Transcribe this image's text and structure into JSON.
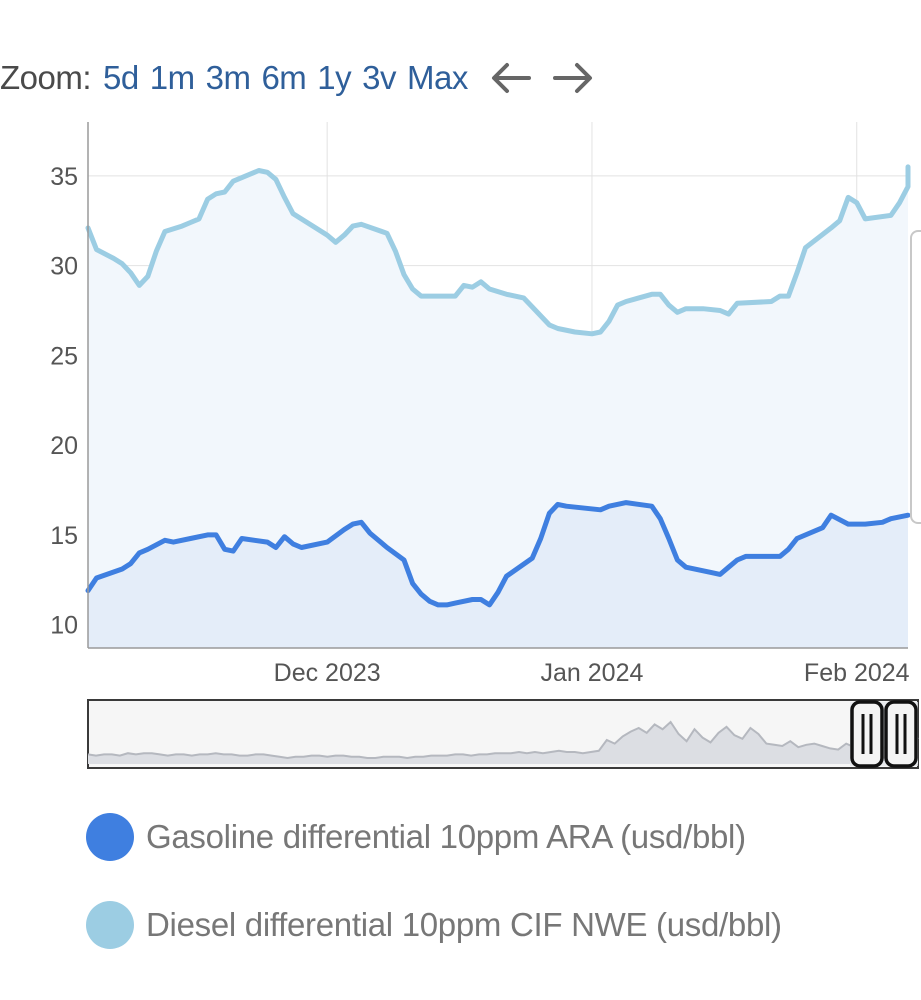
{
  "zoom": {
    "label": "Zoom:",
    "buttons": [
      "5d",
      "1m",
      "3m",
      "6m",
      "1y",
      "3v",
      "Max"
    ]
  },
  "colors": {
    "gasoline": "#3f7fe0",
    "diesel": "#9ccde3",
    "gasoline_fill": "#e4edf9",
    "diesel_fill": "#f2f7fc",
    "grid": "#e2e2e2",
    "navigator_line": "#b5b8bf"
  },
  "chart_data": {
    "type": "line",
    "x_axis": {
      "type": "date",
      "range": [
        "2023-11-03",
        "2024-02-07"
      ]
    },
    "y_axis": {
      "range": [
        8.7,
        38
      ],
      "ticks": [
        10,
        15,
        20,
        25,
        30,
        35
      ]
    },
    "x_ticks": [
      {
        "date": "2023-12-01",
        "label": "Dec 2023"
      },
      {
        "date": "2024-01-01",
        "label": "Jan 2024"
      },
      {
        "date": "2024-02-01",
        "label": "Feb 2024"
      }
    ],
    "grid": true,
    "series": [
      {
        "name": "Gasoline differential 10ppm ARA (usd/bbl)",
        "points": [
          [
            "2023-11-03",
            11.9
          ],
          [
            "2023-11-04",
            12.6
          ],
          [
            "2023-11-07",
            13.1
          ],
          [
            "2023-11-08",
            13.4
          ],
          [
            "2023-11-09",
            14.0
          ],
          [
            "2023-11-10",
            14.2
          ],
          [
            "2023-11-12",
            14.7
          ],
          [
            "2023-11-13",
            14.6
          ],
          [
            "2023-11-15",
            14.8
          ],
          [
            "2023-11-17",
            15.0
          ],
          [
            "2023-11-18",
            15.0
          ],
          [
            "2023-11-19",
            14.2
          ],
          [
            "2023-11-20",
            14.1
          ],
          [
            "2023-11-21",
            14.8
          ],
          [
            "2023-11-24",
            14.6
          ],
          [
            "2023-11-25",
            14.3
          ],
          [
            "2023-11-26",
            14.9
          ],
          [
            "2023-11-27",
            14.5
          ],
          [
            "2023-11-28",
            14.3
          ],
          [
            "2023-12-01",
            14.6
          ],
          [
            "2023-12-03",
            15.3
          ],
          [
            "2023-12-04",
            15.6
          ],
          [
            "2023-12-05",
            15.7
          ],
          [
            "2023-12-06",
            15.1
          ],
          [
            "2023-12-08",
            14.3
          ],
          [
            "2023-12-10",
            13.6
          ],
          [
            "2023-12-11",
            12.3
          ],
          [
            "2023-12-12",
            11.7
          ],
          [
            "2023-12-13",
            11.3
          ],
          [
            "2023-12-14",
            11.1
          ],
          [
            "2023-12-15",
            11.1
          ],
          [
            "2023-12-16",
            11.2
          ],
          [
            "2023-12-18",
            11.4
          ],
          [
            "2023-12-19",
            11.4
          ],
          [
            "2023-12-20",
            11.1
          ],
          [
            "2023-12-21",
            11.8
          ],
          [
            "2023-12-22",
            12.7
          ],
          [
            "2023-12-25",
            13.7
          ],
          [
            "2023-12-26",
            14.8
          ],
          [
            "2023-12-27",
            16.2
          ],
          [
            "2023-12-28",
            16.7
          ],
          [
            "2023-12-29",
            16.6
          ],
          [
            "2024-01-02",
            16.4
          ],
          [
            "2024-01-03",
            16.6
          ],
          [
            "2024-01-05",
            16.8
          ],
          [
            "2024-01-08",
            16.6
          ],
          [
            "2024-01-09",
            15.9
          ],
          [
            "2024-01-10",
            14.8
          ],
          [
            "2024-01-11",
            13.6
          ],
          [
            "2024-01-12",
            13.2
          ],
          [
            "2024-01-15",
            12.9
          ],
          [
            "2024-01-16",
            12.8
          ],
          [
            "2024-01-17",
            13.2
          ],
          [
            "2024-01-18",
            13.6
          ],
          [
            "2024-01-19",
            13.8
          ],
          [
            "2024-01-22",
            13.8
          ],
          [
            "2024-01-23",
            13.8
          ],
          [
            "2024-01-24",
            14.2
          ],
          [
            "2024-01-25",
            14.8
          ],
          [
            "2024-01-28",
            15.4
          ],
          [
            "2024-01-29",
            16.1
          ],
          [
            "2024-01-31",
            15.6
          ],
          [
            "2024-02-02",
            15.6
          ],
          [
            "2024-02-04",
            15.7
          ],
          [
            "2024-02-05",
            15.9
          ],
          [
            "2024-02-07",
            16.1
          ]
        ]
      },
      {
        "name": "Diesel differential 10ppm CIF NWE (usd/bbl)",
        "points": [
          [
            "2023-11-03",
            32.1
          ],
          [
            "2023-11-04",
            30.9
          ],
          [
            "2023-11-06",
            30.4
          ],
          [
            "2023-11-07",
            30.1
          ],
          [
            "2023-11-08",
            29.6
          ],
          [
            "2023-11-09",
            28.9
          ],
          [
            "2023-11-10",
            29.4
          ],
          [
            "2023-11-11",
            30.8
          ],
          [
            "2023-11-12",
            31.9
          ],
          [
            "2023-11-14",
            32.2
          ],
          [
            "2023-11-15",
            32.4
          ],
          [
            "2023-11-16",
            32.6
          ],
          [
            "2023-11-17",
            33.7
          ],
          [
            "2023-11-18",
            34.0
          ],
          [
            "2023-11-19",
            34.1
          ],
          [
            "2023-11-20",
            34.7
          ],
          [
            "2023-11-22",
            35.1
          ],
          [
            "2023-11-23",
            35.3
          ],
          [
            "2023-11-24",
            35.2
          ],
          [
            "2023-11-25",
            34.8
          ],
          [
            "2023-11-26",
            33.8
          ],
          [
            "2023-11-27",
            32.9
          ],
          [
            "2023-12-01",
            31.7
          ],
          [
            "2023-12-02",
            31.3
          ],
          [
            "2023-12-03",
            31.7
          ],
          [
            "2023-12-04",
            32.2
          ],
          [
            "2023-12-05",
            32.3
          ],
          [
            "2023-12-08",
            31.8
          ],
          [
            "2023-12-09",
            30.8
          ],
          [
            "2023-12-10",
            29.5
          ],
          [
            "2023-12-11",
            28.7
          ],
          [
            "2023-12-12",
            28.3
          ],
          [
            "2023-12-16",
            28.3
          ],
          [
            "2023-12-17",
            28.9
          ],
          [
            "2023-12-18",
            28.8
          ],
          [
            "2023-12-19",
            29.1
          ],
          [
            "2023-12-20",
            28.7
          ],
          [
            "2023-12-22",
            28.4
          ],
          [
            "2023-12-24",
            28.2
          ],
          [
            "2023-12-25",
            27.7
          ],
          [
            "2023-12-27",
            26.7
          ],
          [
            "2023-12-28",
            26.5
          ],
          [
            "2023-12-30",
            26.3
          ],
          [
            "2024-01-01",
            26.2
          ],
          [
            "2024-01-02",
            26.3
          ],
          [
            "2024-01-03",
            26.9
          ],
          [
            "2024-01-04",
            27.8
          ],
          [
            "2024-01-05",
            28.0
          ],
          [
            "2024-01-08",
            28.4
          ],
          [
            "2024-01-09",
            28.4
          ],
          [
            "2024-01-10",
            27.8
          ],
          [
            "2024-01-11",
            27.4
          ],
          [
            "2024-01-12",
            27.6
          ],
          [
            "2024-01-14",
            27.6
          ],
          [
            "2024-01-16",
            27.5
          ],
          [
            "2024-01-17",
            27.3
          ],
          [
            "2024-01-18",
            27.9
          ],
          [
            "2024-01-22",
            28.0
          ],
          [
            "2024-01-23",
            28.3
          ],
          [
            "2024-01-24",
            28.3
          ],
          [
            "2024-01-25",
            29.6
          ],
          [
            "2024-01-26",
            31.0
          ],
          [
            "2024-01-29",
            32.1
          ],
          [
            "2024-01-30",
            32.5
          ],
          [
            "2024-01-31",
            33.8
          ],
          [
            "2024-02-01",
            33.5
          ],
          [
            "2024-02-02",
            32.6
          ],
          [
            "2024-02-05",
            32.8
          ],
          [
            "2024-02-06",
            33.5
          ],
          [
            "2024-02-07",
            34.4
          ],
          [
            "2024-02-08",
            35.5
          ]
        ]
      }
    ],
    "navigator": {
      "values": [
        3,
        2,
        3,
        3,
        2,
        4,
        3,
        4,
        4,
        3,
        2,
        3,
        3,
        2,
        3,
        3,
        4,
        3,
        3,
        2,
        2,
        3,
        3,
        2,
        1,
        0,
        1,
        1,
        2,
        2,
        1,
        2,
        2,
        1,
        1,
        0,
        0,
        1,
        1,
        1,
        0,
        1,
        1,
        2,
        2,
        2,
        3,
        3,
        2,
        3,
        3,
        4,
        4,
        4,
        5,
        4,
        5,
        4,
        5,
        6,
        5,
        5,
        4,
        5,
        6,
        15,
        12,
        18,
        22,
        25,
        21,
        28,
        24,
        30,
        20,
        14,
        24,
        17,
        13,
        21,
        26,
        19,
        16,
        25,
        20,
        12,
        11,
        10,
        14,
        9,
        11,
        12,
        10,
        8,
        7,
        12,
        9,
        6,
        5,
        8,
        9,
        10,
        12,
        13,
        17
      ]
    }
  },
  "legend": {
    "items": [
      {
        "label": "Gasoline differential 10ppm ARA (usd/bbl)"
      },
      {
        "label": "Diesel differential 10ppm CIF NWE (usd/bbl)"
      }
    ]
  }
}
